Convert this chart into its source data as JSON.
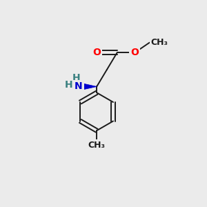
{
  "background_color": "#ebebeb",
  "bond_color": "#1a1a1a",
  "bond_width": 1.4,
  "atom_colors": {
    "O": "#ff0000",
    "N": "#0000cd",
    "H": "#3a8080",
    "C": "#1a1a1a"
  },
  "font_size": 10,
  "fig_size": [
    3.0,
    3.0
  ],
  "dpi": 100
}
